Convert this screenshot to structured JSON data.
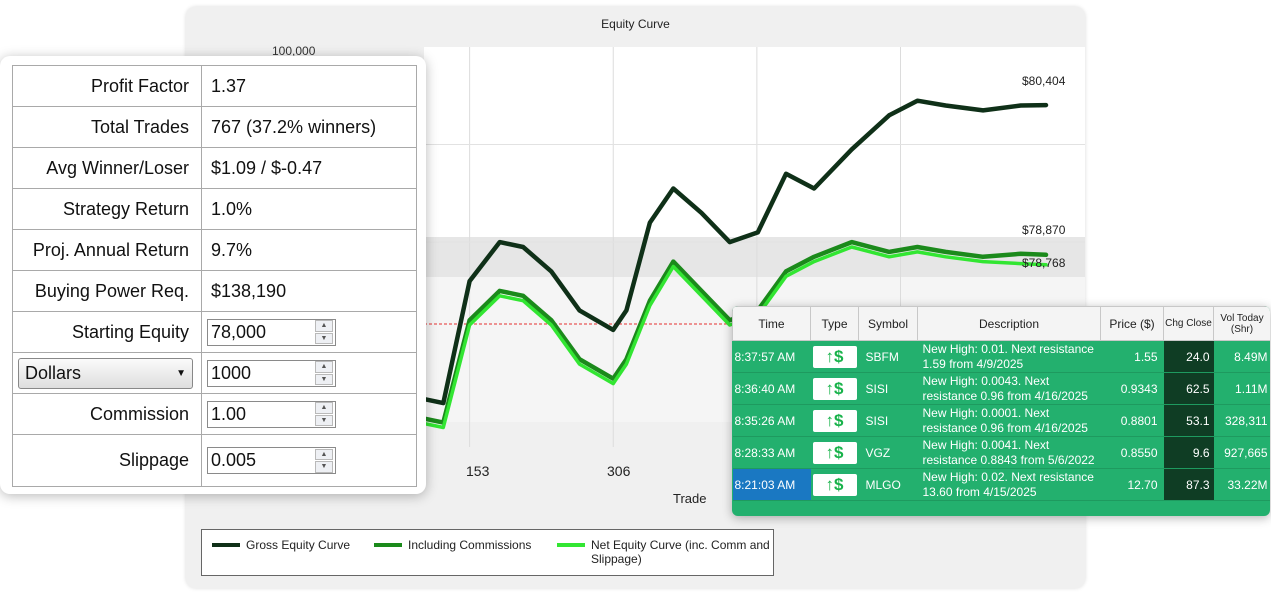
{
  "chart": {
    "title": "Equity Curve",
    "xlabel": "Trade",
    "x_ticks": [
      "153",
      "306"
    ],
    "y_tick_partial": "100,000",
    "end_labels": [
      "$80,404",
      "$78,870",
      "$78,768"
    ],
    "legend": [
      "Gross Equity Curve",
      "Including Commissions",
      "Net Equity Curve (inc. Comm and Slippage)"
    ],
    "colors": {
      "gross": "#0f3018",
      "commissions": "#1b8a1b",
      "net": "#32e632",
      "starting_line": "#e53030"
    }
  },
  "chart_data": {
    "type": "line",
    "title": "Equity Curve",
    "xlabel": "Trade",
    "x": [
      100,
      125,
      153,
      185,
      210,
      240,
      270,
      306,
      320,
      345,
      370,
      400,
      430,
      460,
      490,
      520,
      560,
      600,
      630,
      660,
      700,
      740,
      767
    ],
    "series": [
      {
        "name": "Gross Equity Curve",
        "values": [
          77400,
          77350,
          78600,
          79000,
          78950,
          78700,
          78300,
          78100,
          78300,
          79200,
          79550,
          79300,
          79000,
          79100,
          79700,
          79550,
          79950,
          80300,
          80450,
          80400,
          80350,
          80400,
          80404
        ]
      },
      {
        "name": "Including Commissions",
        "values": [
          77200,
          77150,
          78200,
          78500,
          78450,
          78200,
          77800,
          77600,
          77800,
          78400,
          78800,
          78500,
          78200,
          78300,
          78700,
          78850,
          79000,
          78900,
          78950,
          78900,
          78850,
          78880,
          78870
        ]
      },
      {
        "name": "Net Equity Curve (inc. Comm and Slippage)",
        "values": [
          77150,
          77100,
          78150,
          78450,
          78400,
          78150,
          77750,
          77550,
          77750,
          78350,
          78750,
          78450,
          78150,
          78250,
          78650,
          78800,
          78950,
          78850,
          78900,
          78850,
          78800,
          78780,
          78768
        ]
      }
    ],
    "starting_equity": 78000,
    "end_values": {
      "gross": 80404,
      "commissions": 78870,
      "net": 78768
    },
    "grid": true
  },
  "stats": {
    "rows": [
      {
        "label": "Profit Factor",
        "value": "1.37"
      },
      {
        "label": "Total Trades",
        "value": "767 (37.2% winners)"
      },
      {
        "label": "Avg Winner/Loser",
        "value": "$1.09 / $-0.47"
      },
      {
        "label": "Strategy Return",
        "value": "1.0%"
      },
      {
        "label": "Proj. Annual Return",
        "value": "9.7%"
      },
      {
        "label": "Buying Power Req.",
        "value": "$138,190"
      }
    ],
    "starting_equity_label": "Starting Equity",
    "starting_equity_value": "78,000",
    "sizing_mode": "Dollars",
    "sizing_value": "1000",
    "commission_label": "Commission",
    "commission_value": "1.00",
    "slippage_label": "Slippage",
    "slippage_value": "0.005",
    "spinner_up": "▲",
    "spinner_down": "▼",
    "dropdown_arrow": "▼"
  },
  "alerts": {
    "headers": {
      "time": "Time",
      "type": "Type",
      "symbol": "Symbol",
      "description": "Description",
      "price": "Price ($)",
      "chg": "Chg Close",
      "vol": "Vol Today (Shr)"
    },
    "type_glyph": "↑$",
    "rows": [
      {
        "time": "8:37:57 AM",
        "symbol": "SBFM",
        "description": "New High: 0.01. Next resistance 1.59 from 4/9/2025",
        "price": "1.55",
        "chg": "24.0",
        "vol": "8.49M"
      },
      {
        "time": "8:36:40 AM",
        "symbol": "SISI",
        "description": "New High: 0.0043. Next resistance 0.96 from 4/16/2025",
        "price": "0.9343",
        "chg": "62.5",
        "vol": "1.11M"
      },
      {
        "time": "8:35:26 AM",
        "symbol": "SISI",
        "description": "New High: 0.0001. Next resistance 0.96 from 4/16/2025",
        "price": "0.8801",
        "chg": "53.1",
        "vol": "328,311"
      },
      {
        "time": "8:28:33 AM",
        "symbol": "VGZ",
        "description": "New High: 0.0041. Next resistance 0.8843 from 5/6/2022",
        "price": "0.8550",
        "chg": "9.6",
        "vol": "927,665"
      },
      {
        "time": "8:21:03 AM",
        "symbol": "MLGO",
        "description": "New High: 0.02. Next resistance 13.60 from 4/15/2025",
        "price": "12.70",
        "chg": "87.3",
        "vol": "33.22M"
      }
    ]
  }
}
